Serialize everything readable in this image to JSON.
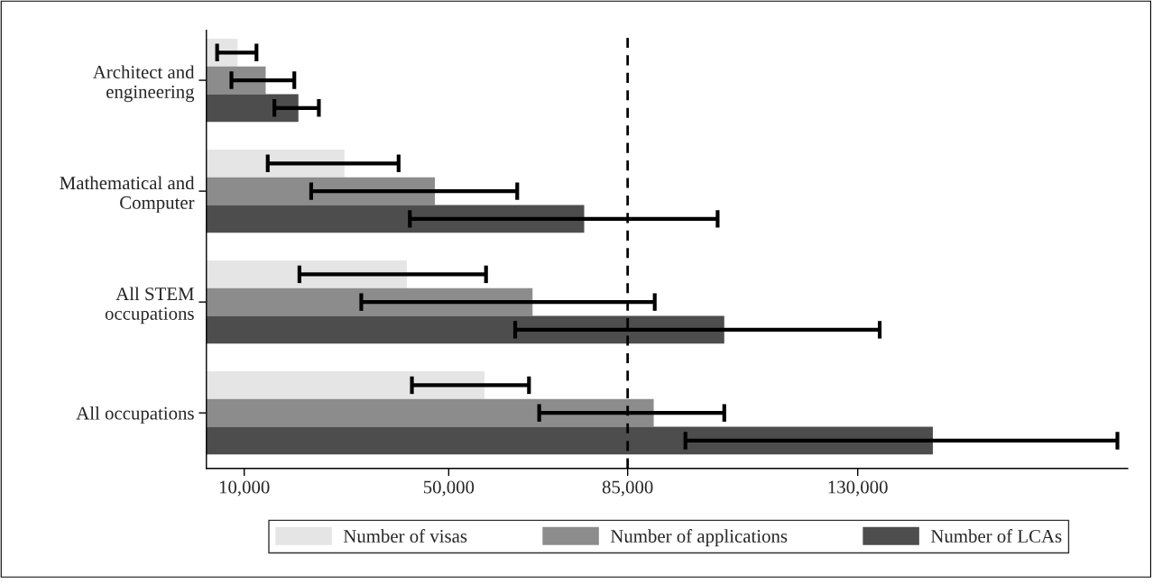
{
  "chart_data": {
    "type": "bar",
    "orientation": "horizontal",
    "categories": [
      "Architect and\nengineering",
      "Mathematical and\nComputer",
      "All STEM\noccupations",
      "All occupations"
    ],
    "series": [
      {
        "name": "Number of visas",
        "color": "#e5e5e5",
        "values": [
          8700,
          29600,
          41800,
          57000
        ],
        "errors": [
          [
            4700,
            12400
          ],
          [
            14600,
            40200
          ],
          [
            20800,
            57300
          ],
          [
            42800,
            65700
          ]
        ]
      },
      {
        "name": "Number of applications",
        "color": "#8c8c8c",
        "values": [
          14200,
          47300,
          66400,
          90100
        ],
        "errors": [
          [
            7500,
            19800
          ],
          [
            23100,
            63400
          ],
          [
            32900,
            90300
          ],
          [
            67700,
            103900
          ]
        ]
      },
      {
        "name": "Number of LCAs",
        "color": "#4d4d4d",
        "values": [
          20600,
          76500,
          103900,
          144700
        ],
        "errors": [
          [
            15900,
            24600
          ],
          [
            42400,
            102600
          ],
          [
            63000,
            134300
          ],
          [
            96300,
            180800
          ]
        ]
      }
    ],
    "xlim": [
      2600,
      182800
    ],
    "xticks": [
      {
        "value": 10000,
        "label": "10,000"
      },
      {
        "value": 50000,
        "label": "50,000"
      },
      {
        "value": 85000,
        "label": "85,000"
      },
      {
        "value": 130000,
        "label": "130,000"
      }
    ],
    "ref_lines": [
      {
        "axis": "x",
        "value": 85000,
        "color": "#000000",
        "line_style": "dashed"
      }
    ],
    "grid": false,
    "legend": "bottom"
  }
}
